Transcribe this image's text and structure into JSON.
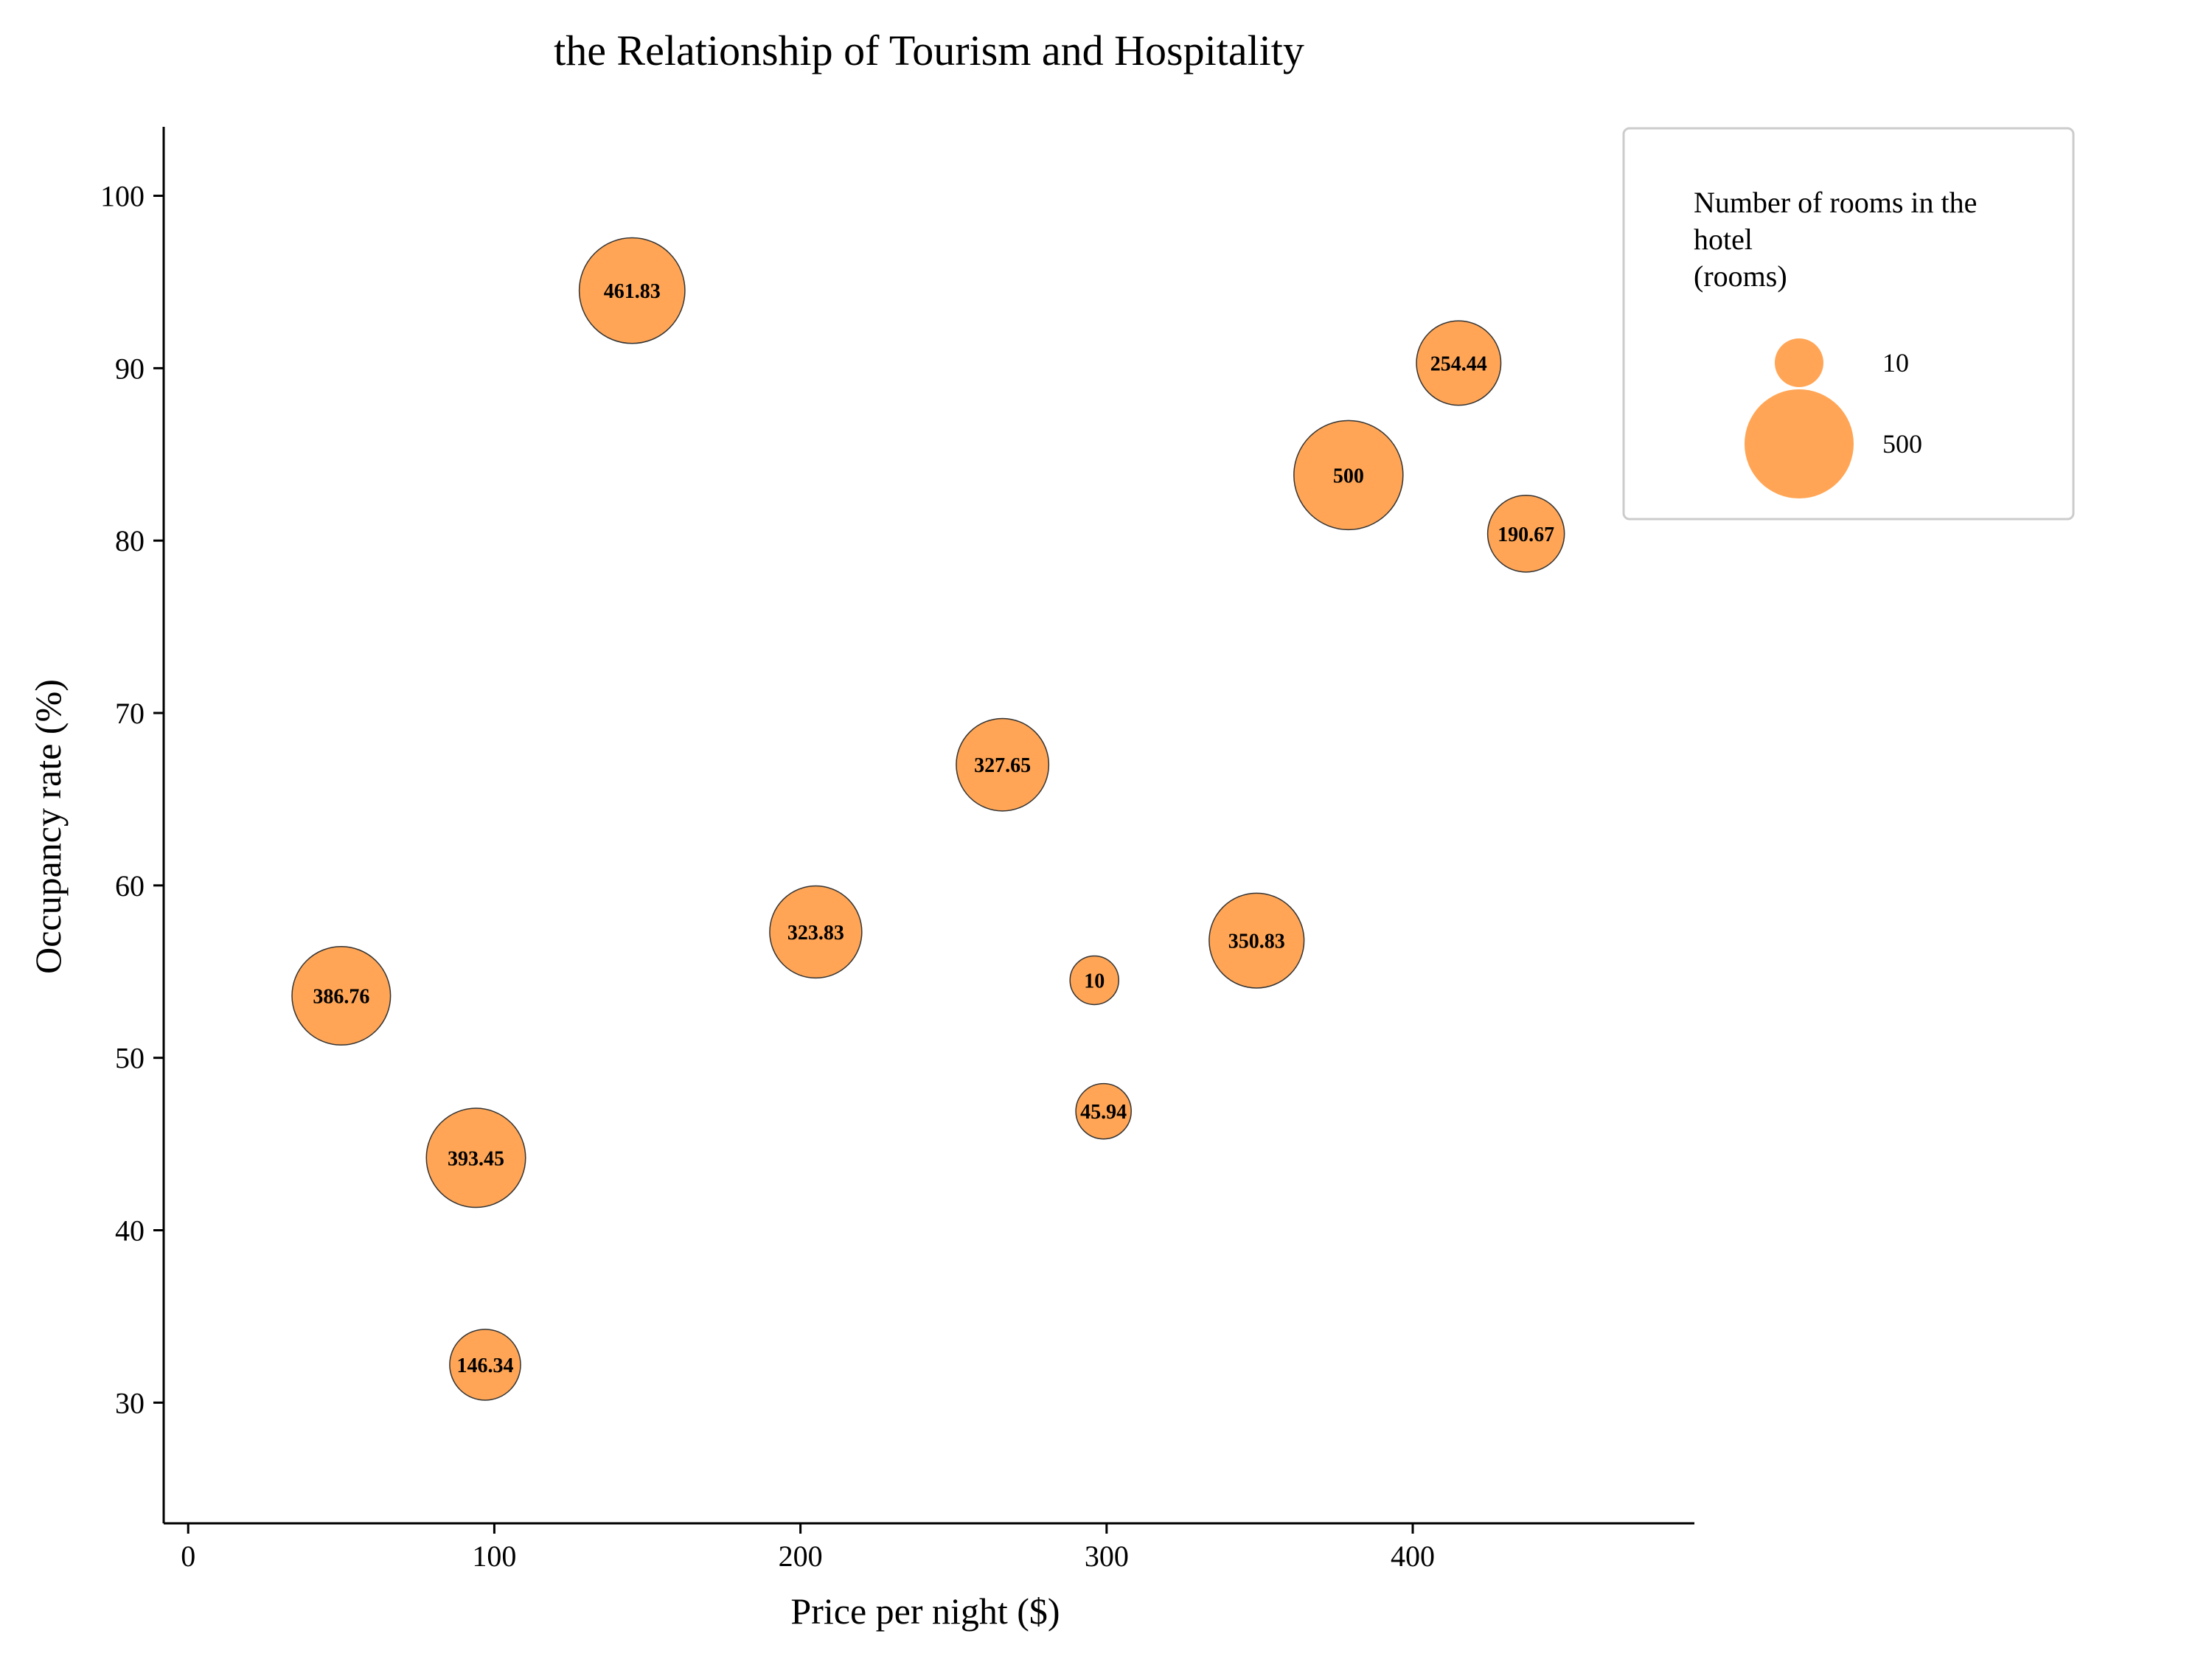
{
  "chart_data": {
    "type": "scatter",
    "title": "the Relationship of Tourism and Hospitality",
    "xlabel": "Price per night ($)",
    "ylabel": "Occupancy rate (%)",
    "xlim": [
      -8,
      492
    ],
    "ylim": [
      23,
      104
    ],
    "xticks": [
      0,
      100,
      200,
      300,
      400
    ],
    "yticks": [
      30,
      40,
      50,
      60,
      70,
      80,
      90,
      100
    ],
    "grid": false,
    "legend": {
      "title": "Number of rooms in the hotel (rooms)",
      "title_lines": [
        "Number of rooms in the",
        "hotel",
        "(rooms)"
      ],
      "placement": "top-right",
      "entries": [
        {
          "label": "10",
          "size": 10
        },
        {
          "label": "500",
          "size": 500
        }
      ]
    },
    "colors": {
      "bubble_fill": "#FFA555",
      "bubble_edge": "#333333"
    },
    "size_range": [
      10,
      500
    ],
    "points": [
      {
        "x": 145,
        "y": 94.5,
        "size": 461.83,
        "label": "461.83"
      },
      {
        "x": 415,
        "y": 90.3,
        "size": 254.44,
        "label": "254.44"
      },
      {
        "x": 379,
        "y": 83.8,
        "size": 500,
        "label": "500"
      },
      {
        "x": 437,
        "y": 80.4,
        "size": 190.67,
        "label": "190.67"
      },
      {
        "x": 266,
        "y": 67.0,
        "size": 327.65,
        "label": "327.65"
      },
      {
        "x": 205,
        "y": 57.3,
        "size": 323.83,
        "label": "323.83"
      },
      {
        "x": 349,
        "y": 56.8,
        "size": 350.83,
        "label": "350.83"
      },
      {
        "x": 296,
        "y": 54.5,
        "size": 10,
        "label": "10"
      },
      {
        "x": 50,
        "y": 53.6,
        "size": 386.76,
        "label": "386.76"
      },
      {
        "x": 299,
        "y": 46.9,
        "size": 45.94,
        "label": "45.94"
      },
      {
        "x": 94,
        "y": 44.2,
        "size": 393.45,
        "label": "393.45"
      },
      {
        "x": 97,
        "y": 32.2,
        "size": 146.34,
        "label": "146.34"
      }
    ]
  }
}
